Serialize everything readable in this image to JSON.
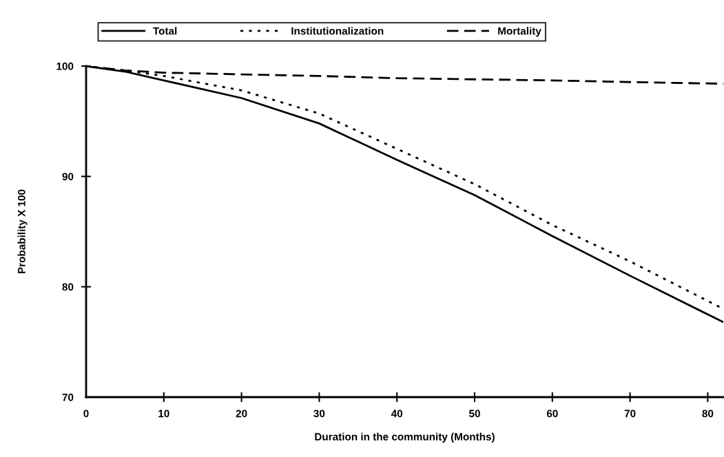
{
  "chart_data": {
    "type": "line",
    "xlabel": "Duration in the community (Months)",
    "ylabel": "Probability X 100",
    "xlim": [
      0,
      82
    ],
    "ylim": [
      70,
      100
    ],
    "xticks": [
      0,
      10,
      20,
      30,
      40,
      50,
      60,
      70,
      80
    ],
    "yticks": [
      70,
      80,
      90,
      100
    ],
    "grid": false,
    "legend": "top",
    "marker": "none",
    "x": [
      0,
      5,
      10,
      20,
      30,
      40,
      50,
      60,
      70,
      82
    ],
    "series": [
      {
        "name": "Total",
        "color": "#000000",
        "line_style": "solid",
        "values": [
          100,
          99.5,
          98.7,
          97.1,
          94.8,
          91.5,
          88.3,
          84.6,
          81.0,
          76.8
        ]
      },
      {
        "name": "Institutionalization",
        "color": "#000000",
        "line_style": "dotted",
        "values": [
          100,
          99.6,
          99.1,
          97.8,
          95.7,
          92.5,
          89.3,
          85.6,
          82.3,
          78.0
        ]
      },
      {
        "name": "Mortality",
        "color": "#000000",
        "line_style": "dashed",
        "values": [
          100,
          99.6,
          99.4,
          99.25,
          99.1,
          98.9,
          98.8,
          98.7,
          98.55,
          98.4
        ]
      }
    ]
  }
}
